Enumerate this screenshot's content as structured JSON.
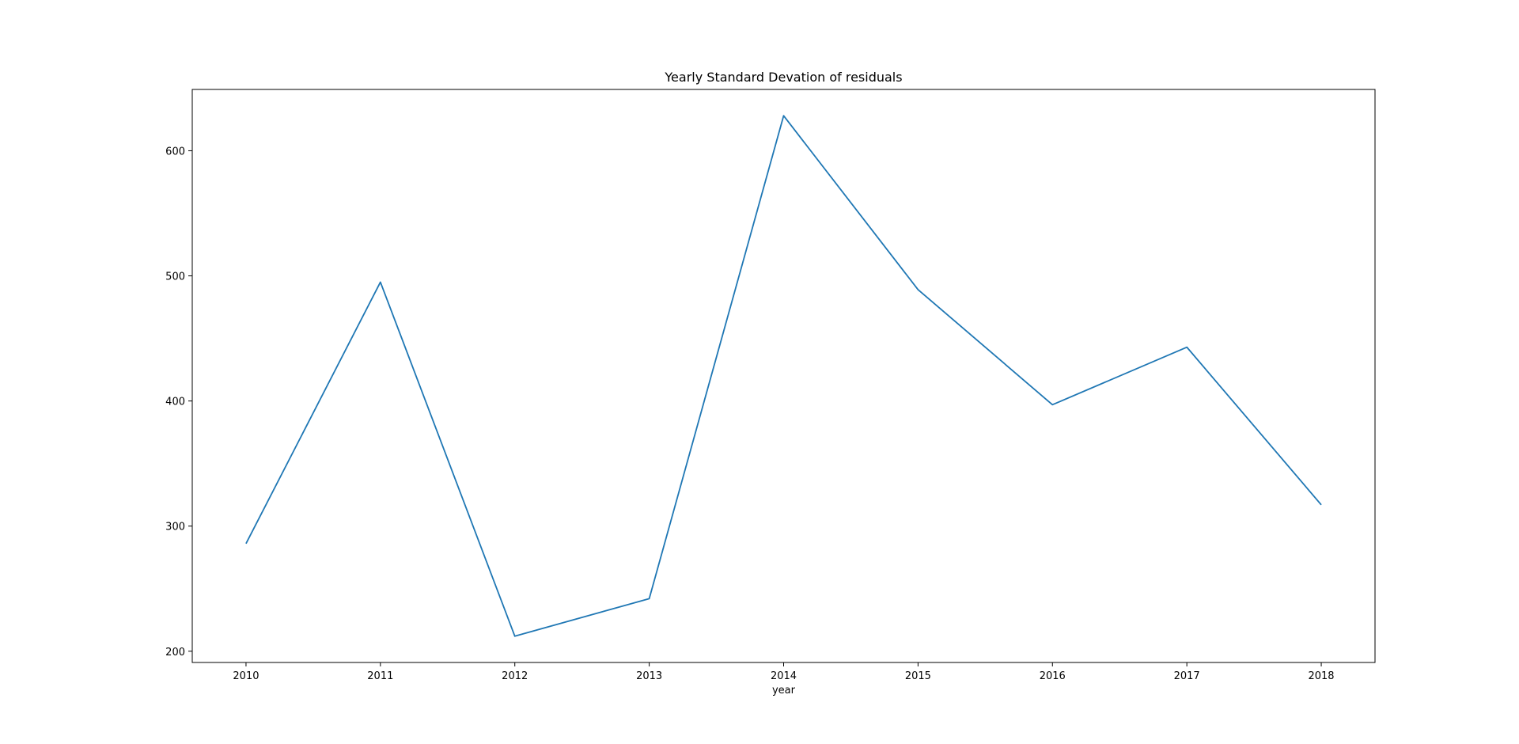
{
  "chart_data": {
    "type": "line",
    "title": "Yearly Standard Devation of residuals",
    "xlabel": "year",
    "ylabel": "",
    "x": [
      2010,
      2011,
      2012,
      2013,
      2014,
      2015,
      2016,
      2017,
      2018
    ],
    "x_ticks": [
      "2010",
      "2011",
      "2012",
      "2013",
      "2014",
      "2015",
      "2016",
      "2017",
      "2018"
    ],
    "y_ticks": [
      200,
      300,
      400,
      500,
      600
    ],
    "xlim": [
      2009.6,
      2018.4
    ],
    "ylim": [
      191,
      649
    ],
    "grid": false,
    "legend": "none",
    "series": [
      {
        "color": "#1f77b4",
        "values": [
          286,
          495,
          212,
          242,
          628,
          489,
          397,
          443,
          317
        ]
      }
    ]
  }
}
